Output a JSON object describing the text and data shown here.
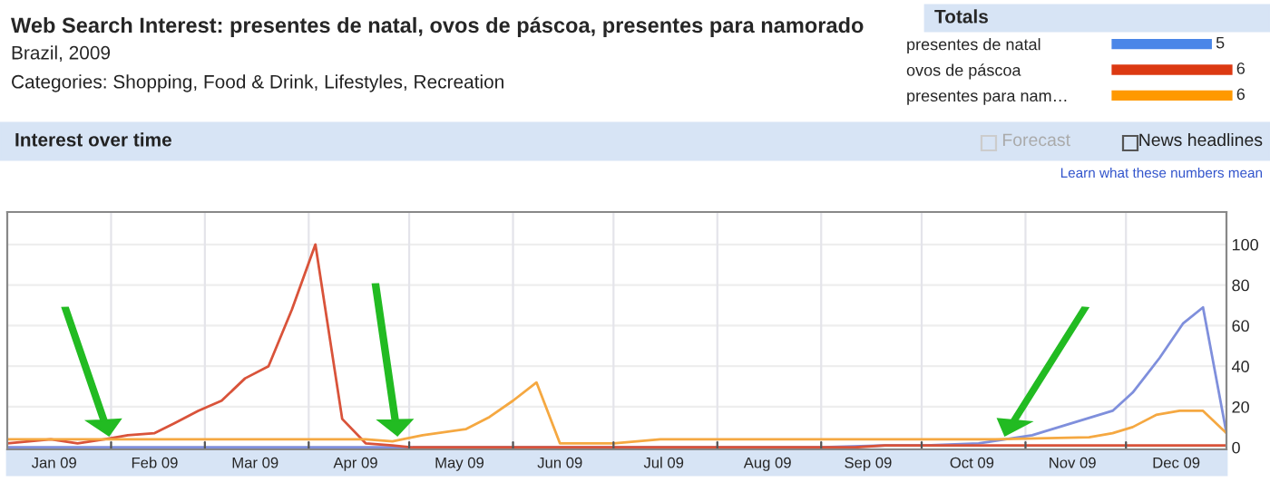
{
  "chart_data": [
    {
      "type": "line",
      "title": "Web Search Interest: presentes de natal, ovos de páscoa, presentes para namorado",
      "subtitle": "Brazil, 2009",
      "annotations": [
        "Categories: Shopping, Food & Drink, Lifestyles, Recreation",
        "Interest over time",
        "Forecast",
        "News headlines",
        "Learn what these numbers mean"
      ],
      "series": [
        {
          "color": "#7f8fdc",
          "x": [
            "2009-01-01",
            "2009-09-01",
            "2009-09-20",
            "2009-10-02",
            "2009-10-18",
            "2009-11-03",
            "2009-11-17",
            "2009-11-27",
            "2009-12-03",
            "2009-12-11",
            "2009-12-18",
            "2009-12-24",
            "2009-12-31"
          ],
          "values": [
            0,
            0,
            1,
            1,
            2,
            6,
            13,
            18,
            27,
            44,
            61,
            69,
            7
          ]
        },
        {
          "color": "#d9533a",
          "x": [
            "2009-01-01",
            "2009-01-14",
            "2009-01-22",
            "2009-01-30",
            "2009-02-06",
            "2009-02-14",
            "2009-02-20",
            "2009-02-27",
            "2009-03-06",
            "2009-03-13",
            "2009-03-20",
            "2009-03-27",
            "2009-04-03",
            "2009-04-11",
            "2009-04-18",
            "2009-04-26",
            "2009-05-02",
            "2009-09-11",
            "2009-09-20",
            "2009-12-31"
          ],
          "values": [
            2,
            4,
            2,
            4,
            6,
            7,
            12,
            18,
            23,
            34,
            40,
            68,
            100,
            14,
            2,
            1,
            0,
            0,
            1,
            1
          ]
        },
        {
          "color": "#f5a841",
          "x": [
            "2009-01-01",
            "2009-02-20",
            "2009-03-20",
            "2009-04-03",
            "2009-04-18",
            "2009-04-26",
            "2009-05-05",
            "2009-05-18",
            "2009-05-25",
            "2009-06-01",
            "2009-06-08",
            "2009-06-15",
            "2009-07-01",
            "2009-07-15",
            "2009-10-01",
            "2009-10-23",
            "2009-11-20",
            "2009-11-27",
            "2009-12-03",
            "2009-12-10",
            "2009-12-17",
            "2009-12-24",
            "2009-12-31"
          ],
          "values": [
            4,
            4,
            4,
            4,
            4,
            3,
            6,
            9,
            15,
            23,
            32,
            2,
            2,
            4,
            4,
            4,
            5,
            7,
            10,
            16,
            18,
            18,
            7
          ]
        }
      ],
      "xlim": [
        "2009-01-01",
        "2009-12-31"
      ],
      "xticks": [
        {
          "value": "2009-01-15",
          "label": "Jan 09"
        },
        {
          "value": "2009-02-01",
          "label": null
        },
        {
          "value": "2009-02-14",
          "label": "Feb 09"
        },
        {
          "value": "2009-03-01",
          "label": null
        },
        {
          "value": "2009-03-16",
          "label": "Mar 09"
        },
        {
          "value": "2009-04-01",
          "label": null
        },
        {
          "value": "2009-04-15",
          "label": "Apr 09"
        },
        {
          "value": "2009-05-01",
          "label": null
        },
        {
          "value": "2009-05-16",
          "label": "May 09"
        },
        {
          "value": "2009-06-01",
          "label": null
        },
        {
          "value": "2009-06-15",
          "label": "Jun 09"
        },
        {
          "value": "2009-07-01",
          "label": null
        },
        {
          "value": "2009-07-16",
          "label": "Jul 09"
        },
        {
          "value": "2009-08-01",
          "label": null
        },
        {
          "value": "2009-08-16",
          "label": "Aug 09"
        },
        {
          "value": "2009-09-01",
          "label": null
        },
        {
          "value": "2009-09-15",
          "label": "Sep 09"
        },
        {
          "value": "2009-10-01",
          "label": null
        },
        {
          "value": "2009-10-16",
          "label": "Oct 09"
        },
        {
          "value": "2009-11-01",
          "label": null
        },
        {
          "value": "2009-11-15",
          "label": "Nov 09"
        },
        {
          "value": "2009-12-01",
          "label": null
        },
        {
          "value": "2009-12-16",
          "label": "Dec 09"
        }
      ],
      "ylim": [
        -1,
        116
      ],
      "yticks": [
        0,
        20,
        40,
        60,
        80,
        100
      ],
      "grid": true,
      "legend": false
    },
    {
      "type": "bar",
      "orientation": "horizontal",
      "title": "Totals",
      "categories": [
        "presentes de natal",
        "ovos de páscoa",
        "presentes para nam…"
      ],
      "values": [
        5,
        6,
        6
      ],
      "colors": [
        "#4a86e8",
        "#dc3912",
        "#ff9900"
      ],
      "data_labels": true,
      "tick_labels": "y"
    }
  ]
}
